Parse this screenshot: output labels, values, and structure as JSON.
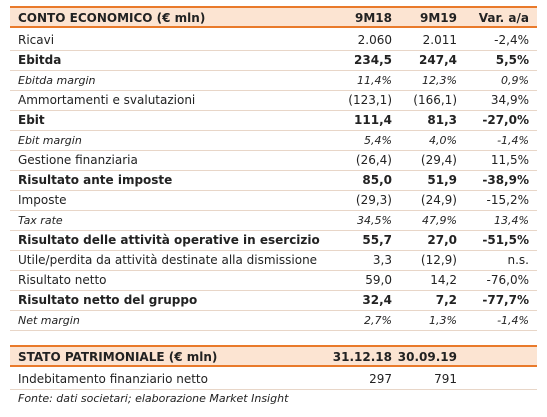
{
  "income_table": {
    "header": [
      "CONTO ECONOMICO (€ mln)",
      "9M18",
      "9M19",
      "Var. a/a"
    ],
    "rows": [
      [
        "Ricavi",
        "2.060",
        "2.011",
        "-2,4%"
      ],
      [
        "Ebitda",
        "234,5",
        "247,4",
        "5,5%"
      ],
      [
        "Ebitda margin",
        "11,4%",
        "12,3%",
        "0,9%"
      ],
      [
        "Ammortamenti e svalutazioni",
        "(123,1)",
        "(166,1)",
        "34,9%"
      ],
      [
        "Ebit",
        "111,4",
        "81,3",
        "-27,0%"
      ],
      [
        "Ebit margin",
        "5,4%",
        "4,0%",
        "-1,4%"
      ],
      [
        "Gestione finanziaria",
        "(26,4)",
        "(29,4)",
        "11,5%"
      ],
      [
        "Risultato ante imposte",
        "85,0",
        "51,9",
        "-38,9%"
      ],
      [
        "Imposte",
        "(29,3)",
        "(24,9)",
        "-15,2%"
      ],
      [
        "Tax rate",
        "34,5%",
        "47,9%",
        "13,4%"
      ],
      [
        "Risultato delle attività operative in esercizio",
        "55,7",
        "27,0",
        "-51,5%"
      ],
      [
        "Utile/perdita da attività destinate alla dismissione",
        "3,3",
        "(12,9)",
        "n.s."
      ],
      [
        "Risultato netto",
        "59,0",
        "14,2",
        "-76,0%"
      ],
      [
        "Risultato netto del gruppo",
        "32,4",
        "7,2",
        "-77,7%"
      ],
      [
        "Net margin",
        "2,7%",
        "1,3%",
        "-1,4%"
      ]
    ]
  },
  "balance_table": {
    "header": [
      "STATO PATRIMONIALE (€ mln)",
      "31.12.18",
      "30.09.19"
    ],
    "rows": [
      [
        "Indebitamento finanziario netto",
        "297",
        "791"
      ]
    ]
  },
  "footnote": "Fonte: dati societari; elaborazione Market Insight"
}
